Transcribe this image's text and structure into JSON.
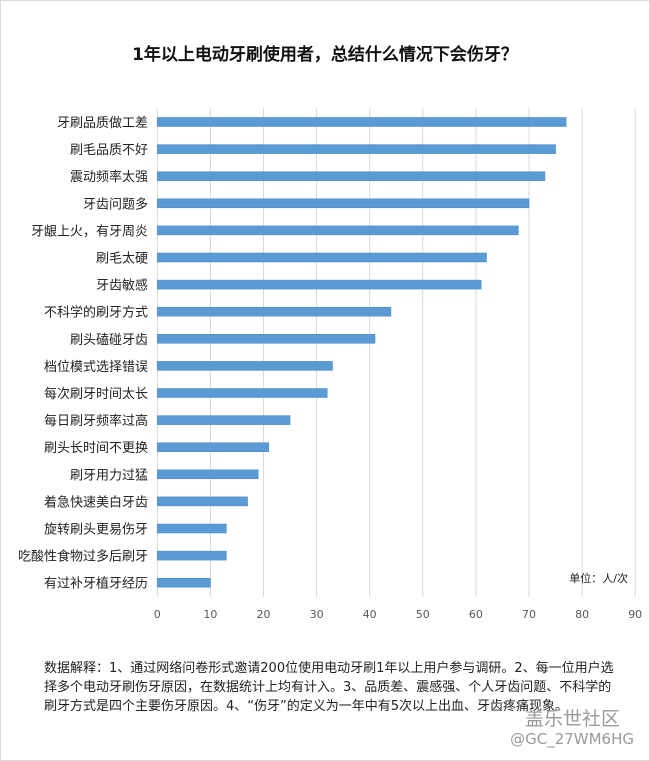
{
  "chart_data": {
    "type": "bar",
    "orientation": "horizontal",
    "title": "1年以上电动牙刷使用者，总结什么情况下会伤牙？",
    "categories": [
      "牙刷品质做工差",
      "刷毛品质不好",
      "震动频率太强",
      "牙齿问题多",
      "牙龈上火，有牙周炎",
      "刷毛太硬",
      "牙齿敏感",
      "不科学的刷牙方式",
      "刷头磕碰牙齿",
      "档位模式选择错误",
      "每次刷牙时间太长",
      "每日刷牙频率过高",
      "刷头长时间不更换",
      "刷牙用力过猛",
      "着急快速美白牙齿",
      "旋转刷头更易伤牙",
      "吃酸性食物过多后刷牙",
      "有过补牙植牙经历"
    ],
    "values": [
      77,
      75,
      73,
      70,
      68,
      62,
      61,
      44,
      41,
      33,
      32,
      25,
      21,
      19,
      17,
      13,
      13,
      10
    ],
    "xlim": [
      0,
      90
    ],
    "xticks": [
      "0",
      "10",
      "20",
      "30",
      "40",
      "50",
      "60",
      "70",
      "80",
      "90"
    ],
    "unit_label": "单位：人/次",
    "grid": "vertical",
    "bar_color": "#5b9bd5",
    "legend": "none"
  },
  "note": "数据解释：1、通过网络问卷形式邀请200位使用电动牙刷1年以上用户参与调研。2、每一位用户选择多个电动牙刷伤牙原因，在数据统计上均有计入。3、品质差、震感强、个人牙齿问题、不科学的刷牙方式是四个主要伤牙原因。4、“伤牙”的定义为一年中有5次以上出血、牙齿疼痛现象。",
  "watermark": {
    "site": "盖乐世社区",
    "user": "@GC_27WM6HG"
  }
}
